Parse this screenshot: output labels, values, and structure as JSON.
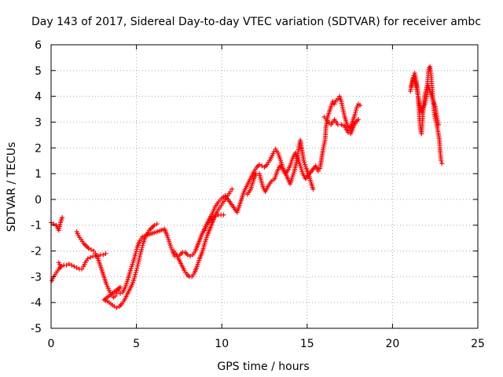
{
  "chart_data": {
    "type": "scatter",
    "title": "Day 143 of 2017, Sidereal Day-to-day VTEC variation (SDTVAR) for receiver ambc",
    "xlabel": "GPS time / hours",
    "ylabel": "SDTVAR / TECUs",
    "xlim": [
      0,
      25
    ],
    "ylim": [
      -5,
      6
    ],
    "xticks": [
      "0",
      "5",
      "10",
      "15",
      "20",
      "25"
    ],
    "yticks": [
      "-5",
      "-4",
      "-3",
      "-2",
      "-1",
      "0",
      "1",
      "2",
      "3",
      "4",
      "5",
      "6"
    ],
    "grid": true,
    "marker": "plus",
    "color": "#ff0000",
    "series": [
      {
        "points": [
          [
            0.0,
            -0.9
          ],
          [
            0.15,
            -0.95
          ],
          [
            0.3,
            -1.0
          ],
          [
            0.45,
            -1.2
          ],
          [
            0.55,
            -0.9
          ],
          [
            0.65,
            -0.7
          ],
          [
            0.05,
            -3.15
          ],
          [
            0.15,
            -3.0
          ],
          [
            0.3,
            -2.85
          ],
          [
            0.45,
            -2.7
          ],
          [
            0.6,
            -2.6
          ],
          [
            0.75,
            -2.55
          ],
          [
            0.9,
            -2.55
          ],
          [
            1.05,
            -2.5
          ],
          [
            1.2,
            -2.55
          ],
          [
            1.35,
            -2.6
          ],
          [
            1.5,
            -2.65
          ],
          [
            1.65,
            -2.7
          ],
          [
            1.8,
            -2.7
          ],
          [
            1.9,
            -2.6
          ],
          [
            2.0,
            -2.45
          ],
          [
            2.15,
            -2.3
          ],
          [
            2.3,
            -2.25
          ],
          [
            2.45,
            -2.2
          ],
          [
            2.6,
            -2.2
          ],
          [
            2.75,
            -2.2
          ],
          [
            2.9,
            -2.15
          ],
          [
            3.05,
            -2.15
          ],
          [
            3.2,
            -2.1
          ],
          [
            0.45,
            -2.45
          ],
          [
            0.55,
            -2.6
          ],
          [
            1.5,
            -1.25
          ],
          [
            1.6,
            -1.4
          ],
          [
            1.75,
            -1.55
          ],
          [
            1.9,
            -1.7
          ],
          [
            2.05,
            -1.8
          ],
          [
            2.2,
            -1.9
          ],
          [
            2.35,
            -1.95
          ],
          [
            2.5,
            -2.0
          ],
          [
            2.6,
            -2.1
          ],
          [
            2.75,
            -2.3
          ],
          [
            2.85,
            -2.5
          ],
          [
            2.95,
            -2.7
          ],
          [
            3.05,
            -2.9
          ],
          [
            3.15,
            -3.1
          ],
          [
            3.25,
            -3.3
          ],
          [
            3.35,
            -3.45
          ],
          [
            3.45,
            -3.6
          ],
          [
            3.55,
            -3.7
          ],
          [
            3.65,
            -3.8
          ],
          [
            3.75,
            -3.75
          ],
          [
            3.85,
            -3.65
          ],
          [
            3.95,
            -3.55
          ],
          [
            4.05,
            -3.4
          ],
          [
            3.1,
            -3.9
          ],
          [
            3.3,
            -3.95
          ],
          [
            3.5,
            -4.05
          ],
          [
            3.7,
            -4.15
          ],
          [
            3.85,
            -4.2
          ],
          [
            4.0,
            -4.15
          ],
          [
            4.15,
            -4.05
          ],
          [
            4.3,
            -3.9
          ],
          [
            4.45,
            -3.7
          ],
          [
            4.6,
            -3.5
          ],
          [
            4.75,
            -3.3
          ],
          [
            4.9,
            -3.0
          ],
          [
            5.0,
            -2.75
          ],
          [
            5.1,
            -2.5
          ],
          [
            5.2,
            -2.2
          ],
          [
            5.3,
            -1.95
          ],
          [
            5.4,
            -1.7
          ],
          [
            5.5,
            -1.5
          ],
          [
            5.6,
            -1.35
          ],
          [
            5.75,
            -1.2
          ],
          [
            5.9,
            -1.1
          ],
          [
            6.05,
            -1.0
          ],
          [
            6.2,
            -0.95
          ],
          [
            4.05,
            -3.65
          ],
          [
            4.2,
            -3.6
          ],
          [
            4.35,
            -3.4
          ],
          [
            4.5,
            -3.1
          ],
          [
            4.65,
            -2.75
          ],
          [
            4.8,
            -2.45
          ],
          [
            4.95,
            -2.1
          ],
          [
            5.05,
            -1.85
          ],
          [
            5.2,
            -1.6
          ],
          [
            5.35,
            -1.45
          ],
          [
            6.65,
            -1.15
          ],
          [
            6.8,
            -1.4
          ],
          [
            6.95,
            -1.7
          ],
          [
            7.1,
            -2.0
          ],
          [
            7.25,
            -2.2
          ],
          [
            7.4,
            -2.2
          ],
          [
            7.55,
            -2.15
          ],
          [
            7.7,
            -2.05
          ],
          [
            7.85,
            -2.05
          ],
          [
            8.0,
            -2.15
          ],
          [
            8.15,
            -2.2
          ],
          [
            8.3,
            -2.15
          ],
          [
            8.45,
            -2.0
          ],
          [
            8.6,
            -1.75
          ],
          [
            8.75,
            -1.5
          ],
          [
            8.9,
            -1.25
          ],
          [
            9.05,
            -1.05
          ],
          [
            9.2,
            -0.9
          ],
          [
            9.35,
            -0.8
          ],
          [
            9.5,
            -0.7
          ],
          [
            9.65,
            -0.65
          ],
          [
            9.8,
            -0.6
          ],
          [
            9.95,
            -0.6
          ],
          [
            10.1,
            -0.6
          ],
          [
            7.2,
            -2.0
          ],
          [
            7.35,
            -2.15
          ],
          [
            7.5,
            -2.35
          ],
          [
            7.65,
            -2.55
          ],
          [
            7.8,
            -2.75
          ],
          [
            7.95,
            -2.9
          ],
          [
            8.1,
            -3.0
          ],
          [
            8.25,
            -3.0
          ],
          [
            8.4,
            -2.85
          ],
          [
            8.55,
            -2.6
          ],
          [
            8.7,
            -2.3
          ],
          [
            8.85,
            -2.05
          ],
          [
            9.0,
            -1.7
          ],
          [
            9.15,
            -1.4
          ],
          [
            9.3,
            -1.15
          ],
          [
            9.45,
            -0.9
          ],
          [
            9.6,
            -0.65
          ],
          [
            9.75,
            -0.45
          ],
          [
            9.9,
            -0.3
          ],
          [
            10.05,
            -0.15
          ],
          [
            10.2,
            0.0
          ],
          [
            10.35,
            0.15
          ],
          [
            10.5,
            0.3
          ],
          [
            10.6,
            0.4
          ],
          [
            9.0,
            -1.2
          ],
          [
            9.2,
            -0.85
          ],
          [
            9.4,
            -0.6
          ],
          [
            9.6,
            -0.3
          ],
          [
            9.8,
            -0.1
          ],
          [
            10.0,
            0.05
          ],
          [
            10.2,
            0.15
          ],
          [
            10.9,
            -0.5
          ],
          [
            11.0,
            -0.3
          ],
          [
            11.1,
            -0.1
          ],
          [
            11.2,
            0.1
          ],
          [
            11.3,
            0.3
          ],
          [
            11.45,
            0.5
          ],
          [
            11.6,
            0.7
          ],
          [
            11.75,
            0.9
          ],
          [
            11.9,
            1.1
          ],
          [
            12.05,
            1.25
          ],
          [
            12.2,
            1.35
          ],
          [
            12.35,
            1.3
          ],
          [
            12.5,
            1.25
          ],
          [
            12.65,
            1.35
          ],
          [
            12.8,
            1.5
          ],
          [
            12.95,
            1.7
          ],
          [
            13.05,
            1.85
          ],
          [
            13.15,
            1.95
          ],
          [
            13.3,
            1.8
          ],
          [
            13.45,
            1.5
          ],
          [
            13.6,
            1.2
          ],
          [
            13.75,
            1.0
          ],
          [
            13.9,
            0.75
          ],
          [
            14.0,
            0.6
          ],
          [
            14.1,
            0.8
          ],
          [
            14.25,
            1.1
          ],
          [
            14.4,
            1.5
          ],
          [
            14.5,
            2.0
          ],
          [
            14.6,
            2.3
          ],
          [
            14.7,
            1.9
          ],
          [
            14.8,
            1.5
          ],
          [
            14.95,
            1.2
          ],
          [
            15.1,
            0.95
          ],
          [
            15.25,
            0.6
          ],
          [
            15.35,
            0.4
          ],
          [
            11.5,
            0.2
          ],
          [
            11.7,
            0.4
          ],
          [
            11.85,
            0.75
          ],
          [
            12.0,
            1.0
          ],
          [
            12.2,
            1.0
          ],
          [
            12.4,
            0.5
          ],
          [
            12.55,
            0.3
          ],
          [
            12.7,
            0.5
          ],
          [
            12.9,
            0.7
          ],
          [
            13.1,
            0.8
          ],
          [
            13.25,
            1.1
          ],
          [
            13.4,
            1.3
          ],
          [
            13.55,
            1.2
          ],
          [
            13.7,
            1.0
          ],
          [
            13.85,
            1.1
          ],
          [
            14.0,
            1.3
          ],
          [
            14.15,
            1.6
          ],
          [
            14.3,
            1.8
          ],
          [
            14.45,
            1.6
          ],
          [
            14.6,
            1.3
          ],
          [
            14.75,
            1.0
          ],
          [
            14.9,
            0.8
          ],
          [
            15.5,
            1.3
          ],
          [
            15.65,
            1.1
          ],
          [
            15.75,
            1.2
          ],
          [
            15.85,
            1.6
          ],
          [
            15.95,
            2.0
          ],
          [
            16.05,
            2.3
          ],
          [
            16.1,
            2.8
          ],
          [
            16.2,
            3.2
          ],
          [
            16.3,
            3.4
          ],
          [
            16.4,
            3.6
          ],
          [
            16.5,
            3.8
          ],
          [
            16.6,
            3.7
          ],
          [
            16.7,
            3.85
          ],
          [
            16.8,
            3.9
          ],
          [
            16.9,
            4.0
          ],
          [
            17.0,
            3.8
          ],
          [
            17.1,
            3.5
          ],
          [
            17.2,
            3.2
          ],
          [
            17.3,
            3.0
          ],
          [
            17.4,
            2.8
          ],
          [
            17.5,
            2.7
          ],
          [
            17.6,
            2.9
          ],
          [
            17.7,
            3.1
          ],
          [
            17.8,
            3.3
          ],
          [
            17.9,
            3.55
          ],
          [
            18.0,
            3.7
          ],
          [
            18.1,
            3.65
          ],
          [
            16.0,
            3.2
          ],
          [
            16.2,
            3.05
          ],
          [
            16.4,
            2.9
          ],
          [
            16.6,
            3.1
          ],
          [
            16.8,
            2.9
          ],
          [
            17.0,
            2.9
          ],
          [
            17.2,
            2.85
          ],
          [
            17.4,
            2.6
          ],
          [
            17.55,
            2.55
          ],
          [
            17.7,
            2.8
          ],
          [
            17.85,
            3.0
          ],
          [
            18.0,
            3.1
          ],
          [
            21.05,
            4.2
          ],
          [
            21.15,
            4.5
          ],
          [
            21.25,
            4.8
          ],
          [
            21.3,
            4.9
          ],
          [
            21.4,
            4.6
          ],
          [
            21.5,
            4.0
          ],
          [
            21.55,
            3.5
          ],
          [
            21.6,
            3.0
          ],
          [
            21.65,
            2.7
          ],
          [
            21.7,
            2.55
          ],
          [
            21.75,
            3.0
          ],
          [
            21.8,
            3.5
          ],
          [
            21.85,
            3.9
          ],
          [
            21.95,
            4.2
          ],
          [
            22.05,
            4.5
          ],
          [
            22.1,
            4.9
          ],
          [
            22.15,
            5.1
          ],
          [
            22.2,
            5.15
          ],
          [
            22.25,
            4.9
          ],
          [
            22.3,
            4.5
          ],
          [
            22.35,
            4.1
          ],
          [
            22.4,
            3.7
          ],
          [
            22.45,
            3.3
          ],
          [
            22.55,
            3.0
          ],
          [
            22.65,
            2.7
          ],
          [
            22.75,
            2.3
          ],
          [
            22.8,
            1.8
          ],
          [
            22.85,
            1.5
          ],
          [
            22.9,
            1.4
          ],
          [
            21.1,
            4.4
          ],
          [
            21.2,
            4.7
          ],
          [
            21.35,
            4.5
          ],
          [
            21.45,
            4.2
          ],
          [
            21.55,
            3.8
          ],
          [
            21.7,
            3.4
          ],
          [
            21.9,
            3.7
          ],
          [
            22.0,
            4.0
          ],
          [
            22.1,
            4.4
          ],
          [
            22.3,
            4.0
          ],
          [
            22.5,
            3.6
          ],
          [
            22.6,
            3.2
          ],
          [
            22.7,
            2.9
          ]
        ]
      }
    ]
  }
}
